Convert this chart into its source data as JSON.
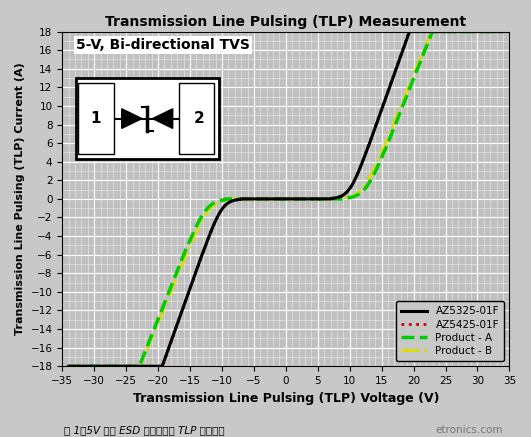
{
  "title": "Transmission Line Pulsing (TLP) Measurement",
  "xlabel": "Transmission Line Pulsing (TLP) Voltage (V)",
  "ylabel": "Transmission Line Pulsing (TLP) Current (A)",
  "xlim": [
    -35,
    35
  ],
  "ylim": [
    -18,
    18
  ],
  "xticks": [
    -35,
    -30,
    -25,
    -20,
    -15,
    -10,
    -5,
    0,
    5,
    10,
    15,
    20,
    25,
    30,
    35
  ],
  "yticks": [
    -18,
    -16,
    -14,
    -12,
    -10,
    -8,
    -6,
    -4,
    -2,
    0,
    2,
    4,
    6,
    8,
    10,
    12,
    14,
    16,
    18
  ],
  "subtitle": "5-V, Bi-directional TVS",
  "caption": "图 1：5V 双向 ESD 保护组件的 TLP 测试曲线",
  "caption2": "etronics.com",
  "bg_color": "#c8c8c8",
  "plot_bg_color": "#c0c0c0",
  "grid_color": "#ffffff",
  "legend": [
    {
      "label": "AZ5325-01F",
      "color": "#000000",
      "linestyle": "solid",
      "linewidth": 2.2
    },
    {
      "label": "AZ5425-01F",
      "color": "#cc0000",
      "linestyle": "dotted",
      "linewidth": 2.0
    },
    {
      "label": "Product - A",
      "color": "#00cc00",
      "linestyle": "dashed",
      "linewidth": 2.5
    },
    {
      "label": "Product - B",
      "color": "#dddd00",
      "linestyle": "dashdot",
      "linewidth": 2.0
    }
  ]
}
